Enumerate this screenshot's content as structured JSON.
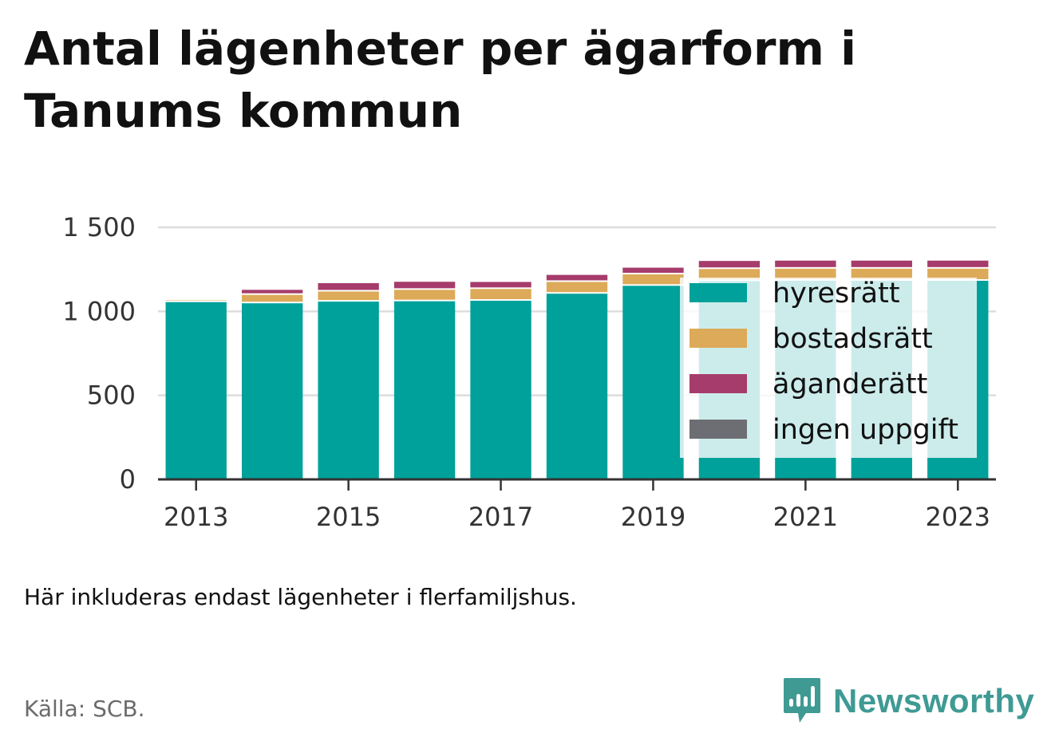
{
  "chart_data": {
    "type": "bar",
    "stacked": true,
    "title": "Antal lägenheter per ägarform i Tanums kommun",
    "xlabel": "",
    "ylabel": "",
    "categories": [
      "2013",
      "2014",
      "2015",
      "2016",
      "2017",
      "2018",
      "2019",
      "2020",
      "2021",
      "2022",
      "2023"
    ],
    "x_tick_labels": [
      "2013",
      "2015",
      "2017",
      "2019",
      "2021",
      "2023"
    ],
    "y_ticks": [
      0,
      500,
      1000,
      1500
    ],
    "y_tick_labels": [
      "0",
      "500",
      "1 000",
      "1 500"
    ],
    "ylim": [
      0,
      1500
    ],
    "grid": true,
    "legend_position": "inside-right",
    "series": [
      {
        "name": "hyresrätt",
        "color": "#00a19a",
        "values": [
          1055,
          1048,
          1058,
          1060,
          1063,
          1105,
          1152,
          1180,
          1182,
          1182,
          1182
        ]
      },
      {
        "name": "bostadsrätt",
        "color": "#dcaa58",
        "values": [
          12,
          50,
          60,
          68,
          70,
          70,
          68,
          72,
          72,
          72,
          72
        ]
      },
      {
        "name": "äganderätt",
        "color": "#a63c6b",
        "values": [
          0,
          30,
          50,
          48,
          42,
          42,
          40,
          48,
          48,
          48,
          48
        ]
      },
      {
        "name": "ingen uppgift",
        "color": "#6d6e73",
        "values": [
          0,
          0,
          0,
          0,
          0,
          0,
          0,
          0,
          0,
          0,
          0
        ]
      }
    ]
  },
  "note": "Här inkluderas endast lägenheter i flerfamiljshus.",
  "source": "Källa: SCB.",
  "brand": {
    "name": "Newsworthy",
    "icon": "newsworthy-logo-icon",
    "color": "#3f9a94"
  }
}
